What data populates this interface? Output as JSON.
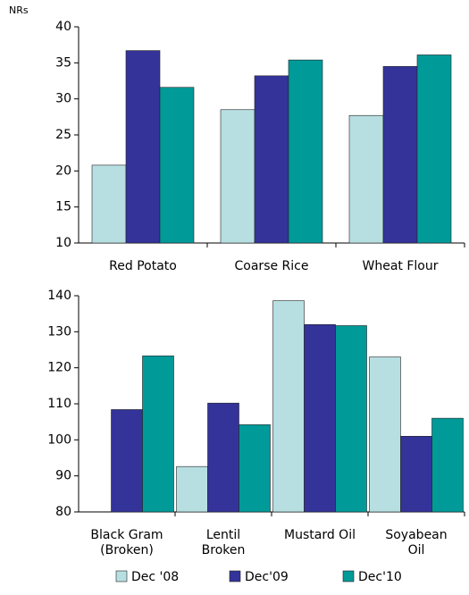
{
  "chart_data": [
    {
      "type": "bar",
      "y_label": "NRs",
      "categories": [
        [
          "Red Potato"
        ],
        [
          "Coarse Rice"
        ],
        [
          "Wheat Flour"
        ]
      ],
      "series": [
        {
          "name": "Dec '08",
          "color": "#b7dfe2",
          "values": [
            20.8,
            28.5,
            27.7
          ]
        },
        {
          "name": "Dec'09",
          "color": "#33339a",
          "values": [
            36.7,
            33.2,
            34.5
          ]
        },
        {
          "name": "Dec'10",
          "color": "#009a99",
          "values": [
            31.6,
            35.4,
            36.1
          ]
        }
      ],
      "ylim": [
        10,
        40
      ],
      "yticks": [
        10,
        15,
        20,
        25,
        30,
        35,
        40
      ]
    },
    {
      "type": "bar",
      "categories": [
        [
          "Black Gram",
          "(Broken)"
        ],
        [
          "Lentil",
          "Broken"
        ],
        [
          "Mustard Oil"
        ],
        [
          "Soyabean",
          "Oil"
        ]
      ],
      "series": [
        {
          "values": [
            null,
            92.6,
            138.6,
            123.0
          ]
        },
        {
          "values": [
            108.4,
            110.2,
            132.0,
            101.0
          ]
        },
        {
          "values": [
            123.3,
            104.2,
            131.7,
            106.0
          ]
        }
      ],
      "ylim": [
        80,
        140
      ],
      "yticks": [
        80,
        90,
        100,
        110,
        120,
        130,
        140
      ]
    }
  ]
}
